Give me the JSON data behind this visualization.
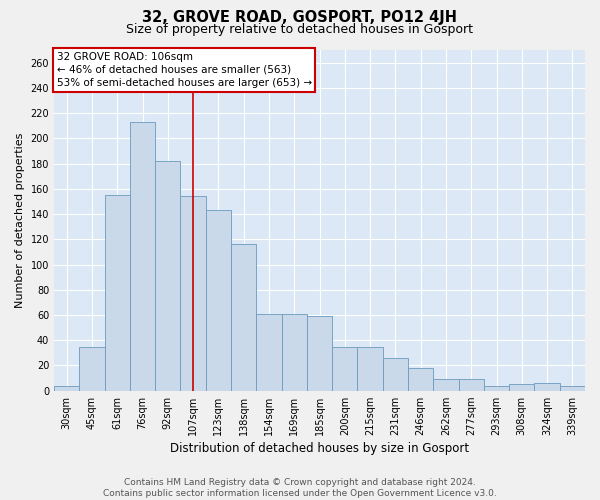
{
  "title": "32, GROVE ROAD, GOSPORT, PO12 4JH",
  "subtitle": "Size of property relative to detached houses in Gosport",
  "xlabel": "Distribution of detached houses by size in Gosport",
  "ylabel": "Number of detached properties",
  "categories": [
    "30sqm",
    "45sqm",
    "61sqm",
    "76sqm",
    "92sqm",
    "107sqm",
    "123sqm",
    "138sqm",
    "154sqm",
    "169sqm",
    "185sqm",
    "200sqm",
    "215sqm",
    "231sqm",
    "246sqm",
    "262sqm",
    "277sqm",
    "293sqm",
    "308sqm",
    "324sqm",
    "339sqm"
  ],
  "values": [
    4,
    35,
    155,
    213,
    182,
    154,
    143,
    116,
    61,
    61,
    59,
    35,
    35,
    26,
    18,
    9,
    9,
    4,
    5,
    6,
    4
  ],
  "bar_color": "#c9d9ea",
  "bar_edge_color": "#6b9abf",
  "vline_color": "#cc0000",
  "annotation_line1": "32 GROVE ROAD: 106sqm",
  "annotation_line2": "← 46% of detached houses are smaller (563)",
  "annotation_line3": "53% of semi-detached houses are larger (653) →",
  "annotation_box_color": "#cc0000",
  "annotation_box_bg": "#ffffff",
  "ylim": [
    0,
    270
  ],
  "yticks": [
    0,
    20,
    40,
    60,
    80,
    100,
    120,
    140,
    160,
    180,
    200,
    220,
    240,
    260
  ],
  "footer_text": "Contains HM Land Registry data © Crown copyright and database right 2024.\nContains public sector information licensed under the Open Government Licence v3.0.",
  "fig_bg_color": "#f0f0f0",
  "plot_bg_color": "#dce8f5",
  "grid_color": "#ffffff",
  "title_fontsize": 10.5,
  "subtitle_fontsize": 9,
  "xlabel_fontsize": 8.5,
  "ylabel_fontsize": 8,
  "tick_fontsize": 7,
  "annotation_fontsize": 7.5,
  "footer_fontsize": 6.5
}
